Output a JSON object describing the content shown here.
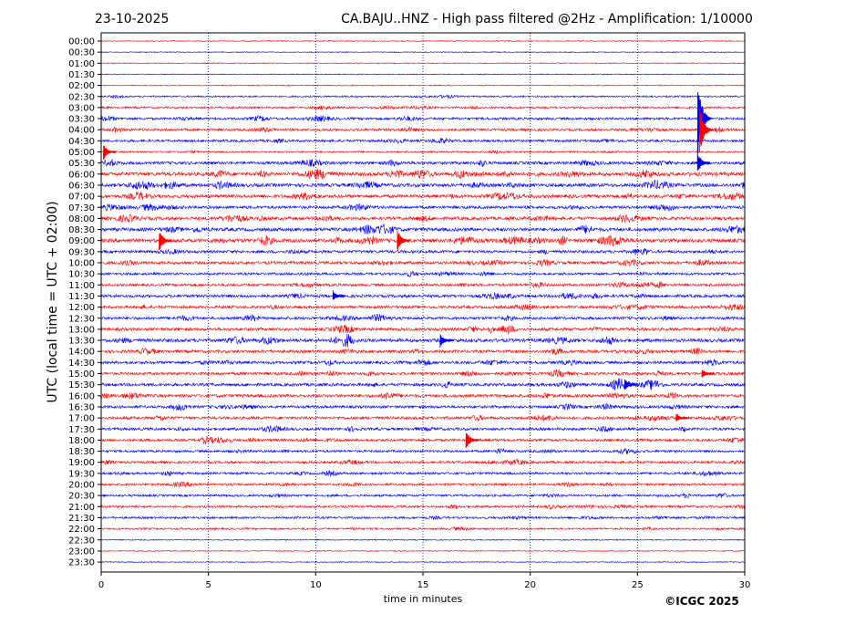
{
  "header": {
    "date": "23-10-2025",
    "title": "CA.BAJU..HNZ - High pass filtered @2Hz - Amplification: 1/10000"
  },
  "footer": {
    "copyright": "©ICGC 2025"
  },
  "colors": {
    "trace_red": "#ff0000",
    "trace_blue": "#0000ff",
    "grid": "#000080",
    "frame": "#000000"
  },
  "chart_data": {
    "type": "line",
    "title": "CA.BAJU..HNZ - High pass filtered @2Hz - Amplification: 1/10000",
    "xlabel": "time in minutes",
    "ylabel": "UTC (local time = UTC + 02:00)",
    "xlim": [
      0,
      30
    ],
    "xticks": [
      "0",
      "5",
      "10",
      "15",
      "20",
      "25",
      "30"
    ],
    "xtick_values": [
      0,
      5,
      10,
      15,
      20,
      25,
      30
    ],
    "grid": "vertical dotted lines at 5-minute intervals",
    "row_labels": [
      "00:00",
      "00:30",
      "01:00",
      "01:30",
      "02:00",
      "02:30",
      "03:00",
      "03:30",
      "04:00",
      "04:30",
      "05:00",
      "05:30",
      "06:00",
      "06:30",
      "07:00",
      "07:30",
      "08:00",
      "08:30",
      "09:00",
      "09:30",
      "10:00",
      "10:30",
      "11:00",
      "11:30",
      "12:00",
      "12:30",
      "13:00",
      "13:30",
      "14:00",
      "14:30",
      "15:00",
      "15:30",
      "16:00",
      "16:30",
      "17:00",
      "17:30",
      "18:00",
      "18:30",
      "19:00",
      "19:30",
      "20:00",
      "20:30",
      "21:00",
      "21:30",
      "22:00",
      "22:30",
      "23:00",
      "23:30"
    ],
    "row_colors": [
      "red",
      "blue",
      "red",
      "blue",
      "red",
      "blue",
      "red",
      "blue",
      "red",
      "blue",
      "red",
      "blue",
      "red",
      "blue",
      "red",
      "blue",
      "red",
      "blue",
      "red",
      "blue",
      "red",
      "blue",
      "red",
      "blue",
      "red",
      "blue",
      "red",
      "blue",
      "red",
      "blue",
      "red",
      "blue",
      "red",
      "blue",
      "red",
      "blue",
      "red",
      "blue",
      "red",
      "blue",
      "red",
      "blue",
      "red",
      "blue",
      "red",
      "blue",
      "red",
      "blue"
    ],
    "row_noise_level": [
      0.05,
      0.05,
      0.05,
      0.05,
      0.08,
      0.3,
      0.4,
      0.55,
      0.6,
      0.55,
      0.3,
      0.75,
      1.0,
      0.9,
      0.85,
      0.7,
      0.8,
      0.9,
      1.0,
      0.7,
      0.7,
      0.55,
      0.6,
      0.75,
      0.65,
      0.7,
      0.75,
      0.9,
      0.75,
      0.7,
      0.7,
      0.75,
      0.75,
      0.65,
      0.65,
      0.65,
      0.6,
      0.55,
      0.55,
      0.55,
      0.5,
      0.5,
      0.5,
      0.45,
      0.35,
      0.08,
      0.05,
      0.05
    ],
    "events": [
      {
        "row": 7,
        "minute": 27.8,
        "amplitude": 6.0
      },
      {
        "row": 8,
        "minute": 27.9,
        "amplitude": 3.5
      },
      {
        "row": 10,
        "minute": 0.1,
        "amplitude": 1.2
      },
      {
        "row": 11,
        "minute": 27.8,
        "amplitude": 1.5
      },
      {
        "row": 18,
        "minute": 2.7,
        "amplitude": 1.6
      },
      {
        "row": 18,
        "minute": 13.8,
        "amplitude": 1.6
      },
      {
        "row": 23,
        "minute": 10.8,
        "amplitude": 0.8
      },
      {
        "row": 27,
        "minute": 15.8,
        "amplitude": 1.0
      },
      {
        "row": 31,
        "minute": 24.4,
        "amplitude": 0.9
      },
      {
        "row": 36,
        "minute": 17.0,
        "amplitude": 1.5
      },
      {
        "row": 34,
        "minute": 26.8,
        "amplitude": 0.7
      },
      {
        "row": 30,
        "minute": 28.0,
        "amplitude": 0.7
      }
    ]
  }
}
